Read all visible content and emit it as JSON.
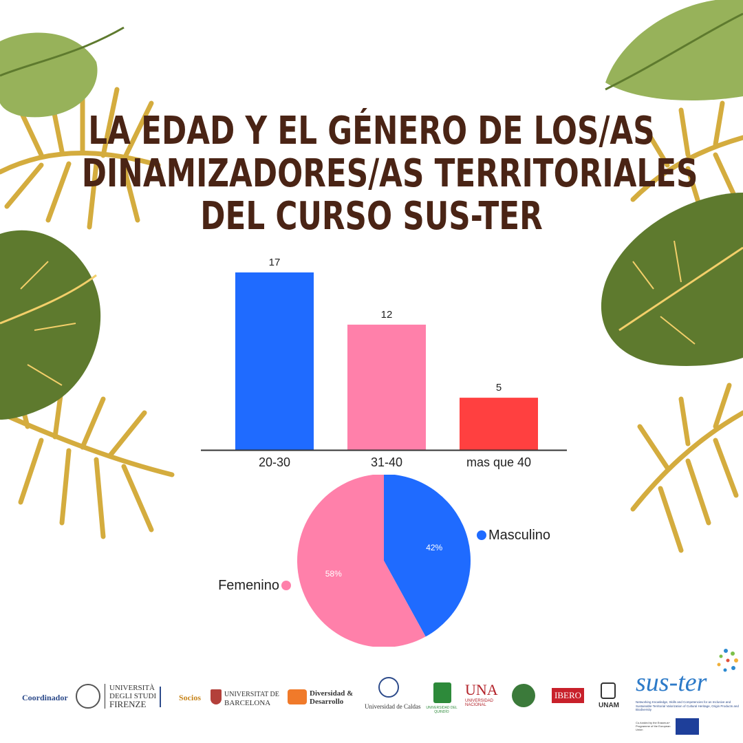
{
  "title": {
    "line1": "LA EDAD Y EL GÉNERO DE LOS/AS",
    "line2": "DINAMIZADORES/AS TERRITORIALES",
    "line3": "DEL CURSO SUS-TER"
  },
  "chart_data": [
    {
      "type": "bar",
      "categories": [
        "20-30",
        "31-40",
        "mas que 40"
      ],
      "values": [
        17,
        12,
        5
      ],
      "data_labels": [
        "17",
        "12",
        "5"
      ],
      "colors": [
        "#1f6bff",
        "#ff80aa",
        "#ff4040"
      ],
      "ylim": [
        0,
        17
      ],
      "grid": false,
      "title": "",
      "xlabel": "",
      "ylabel": ""
    },
    {
      "type": "pie",
      "slices": [
        {
          "label": "Masculino",
          "value": 42,
          "pct_label": "42%",
          "color": "#1f6bff"
        },
        {
          "label": "Femenino",
          "value": 58,
          "pct_label": "58%",
          "color": "#ff80aa"
        }
      ],
      "legend_placement": "sides"
    }
  ],
  "footer": {
    "coordinator_label": "Coordinador",
    "unifi_line1": "UNIVERSITÀ",
    "unifi_line2": "DEGLI STUDI",
    "unifi_line3": "FIRENZE",
    "partners_label": "Socios",
    "ub_line1": "UNIVERSITAT DE",
    "ub_line2": "BARCELONA",
    "dd_line1": "Diversidad &",
    "dd_line2": "Desarrollo",
    "caldas": "Universidad de Caldas",
    "quindio": "UNIVERSIDAD DEL QUINDÍO",
    "una": "UNA",
    "una_sub": "UNIVERSIDAD NACIONAL",
    "ibero": "IBERO",
    "unam": "UNAM",
    "suster": "sus-ter",
    "suster_tagline": "Networking Knowledge, Skills and Competencies for an Inclusive and Sustainable Territorial Valorization of Cultural Heritage, Origin Products and Biodiversity",
    "eu_text": "Co-funded by the Erasmus+ Programme of the European Union"
  },
  "colors": {
    "title": "#4a2415",
    "leaf_green": "#5e7a2e",
    "leaf_light": "#97b25a",
    "palm_gold": "#d4ac3e",
    "vein": "#f3cf6a"
  }
}
